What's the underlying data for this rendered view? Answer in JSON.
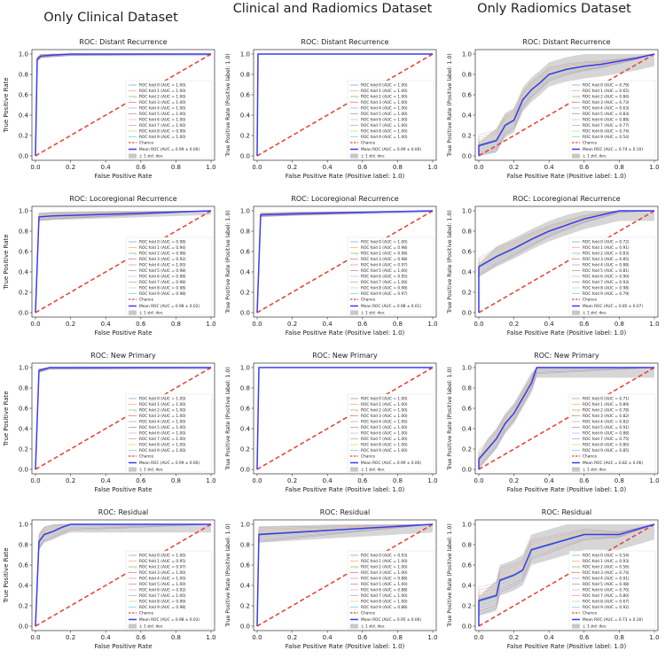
{
  "column_headers": [
    "Only Clinical Dataset",
    "Clinical and Radiomics Dataset",
    "Only Radiomics Dataset"
  ],
  "legend_common": {
    "chance": "Chance",
    "std": "± 1 std. dev."
  },
  "colors": {
    "mean": "#3b3bf0",
    "chance": "#e8453c",
    "band": "#c8c8c8",
    "folds": [
      "#1f77b4",
      "#ff7f0e",
      "#2ca02c",
      "#d62728",
      "#9467bd",
      "#8c564b",
      "#e377c2",
      "#7f7f7f",
      "#bcbd22",
      "#17becf"
    ]
  },
  "chart_data": [
    {
      "type": "line",
      "column": 0,
      "row": 0,
      "title": "ROC: Distant Recurrence",
      "xlabel": "False Positive Rate",
      "ylabel": "True Positive Rate",
      "xlim": [
        0,
        1
      ],
      "ylim": [
        0,
        1
      ],
      "ticks": [
        "0.0",
        "0.2",
        "0.4",
        "0.6",
        "0.8",
        "1.0"
      ],
      "fold_aucs": [
        "1.00",
        "1.00",
        "1.00",
        "1.00",
        "1.00",
        "1.00",
        "1.00",
        "1.00",
        "0.99",
        "1.00"
      ],
      "mean_label": "Mean ROC (AUC = 0.99 ± 0.00)",
      "tpr_std": 0.02,
      "mean_curve": [
        [
          0,
          0
        ],
        [
          0.01,
          0.95
        ],
        [
          0.03,
          0.98
        ],
        [
          0.1,
          0.99
        ],
        [
          0.2,
          1
        ],
        [
          1,
          1
        ]
      ]
    },
    {
      "type": "line",
      "column": 1,
      "row": 0,
      "title": "ROC: Distant Recurrence",
      "xlabel": "False Positive Rate (Positive label: 1.0)",
      "ylabel": "True Positive Rate (Positive label: 1.0)",
      "xlim": [
        0,
        1
      ],
      "ylim": [
        0,
        1
      ],
      "ticks": [
        "0.0",
        "0.2",
        "0.4",
        "0.6",
        "0.8",
        "1.0"
      ],
      "fold_aucs": [
        "1.00",
        "1.00",
        "1.00",
        "1.00",
        "1.00",
        "1.00",
        "1.00",
        "1.00",
        "1.00",
        "1.00"
      ],
      "mean_label": "Mean ROC (AUC = 0.99 ± 0.00)",
      "tpr_std": 0.0,
      "mean_curve": [
        [
          0,
          0
        ],
        [
          0.005,
          1
        ],
        [
          1,
          1
        ]
      ]
    },
    {
      "type": "line",
      "column": 2,
      "row": 0,
      "title": "ROC: Distant Recurrence",
      "xlabel": "False Positive Rate (Positive label: 1.0)",
      "ylabel": "True Positive Rate (Positive label: 1.0)",
      "xlim": [
        0,
        1
      ],
      "ylim": [
        0,
        1
      ],
      "ticks": [
        "0.0",
        "0.2",
        "0.4",
        "0.6",
        "0.8",
        "1.0"
      ],
      "fold_aucs": [
        "0.79",
        "0.65",
        "0.84",
        "0.73",
        "0.63",
        "0.83",
        "0.88",
        "0.77",
        "0.74",
        "0.54"
      ],
      "mean_label": "Mean ROC (AUC = 0.74 ± 0.10)",
      "tpr_std": 0.12,
      "mean_curve": [
        [
          0,
          0
        ],
        [
          0,
          0.1
        ],
        [
          0.1,
          0.15
        ],
        [
          0.15,
          0.3
        ],
        [
          0.2,
          0.35
        ],
        [
          0.25,
          0.55
        ],
        [
          0.3,
          0.65
        ],
        [
          0.35,
          0.72
        ],
        [
          0.4,
          0.8
        ],
        [
          0.5,
          0.85
        ],
        [
          0.6,
          0.88
        ],
        [
          0.7,
          0.9
        ],
        [
          0.8,
          0.93
        ],
        [
          0.9,
          0.96
        ],
        [
          1,
          1
        ]
      ]
    },
    {
      "type": "line",
      "column": 0,
      "row": 1,
      "title": "ROC: Locoregional Recurrence",
      "xlabel": "False Positive Rate",
      "ylabel": "True Positive Rate",
      "xlim": [
        0,
        1
      ],
      "ylim": [
        0,
        1
      ],
      "ticks": [
        "0.0",
        "0.2",
        "0.4",
        "0.6",
        "0.8",
        "1.0"
      ],
      "fold_aucs": [
        "0.98",
        "0.94",
        "0.98",
        "0.92",
        "1.00",
        "0.98",
        "0.98",
        "0.98",
        "0.98",
        "0.98"
      ],
      "mean_label": "Mean ROC (AUC = 0.98 ± 0.02)",
      "tpr_std": 0.04,
      "mean_curve": [
        [
          0,
          0
        ],
        [
          0.02,
          0.94
        ],
        [
          0.1,
          0.95
        ],
        [
          0.5,
          0.97
        ],
        [
          1,
          1
        ]
      ]
    },
    {
      "type": "line",
      "column": 1,
      "row": 1,
      "title": "ROC: Locoregional Recurrence",
      "xlabel": "False Positive Rate (Positive label: 1.0)",
      "ylabel": "True Positive Rate (Positive label: 1.0)",
      "xlim": [
        0,
        1
      ],
      "ylim": [
        0,
        1
      ],
      "ticks": [
        "0.0",
        "0.2",
        "0.4",
        "0.6",
        "0.8",
        "1.0"
      ],
      "fold_aucs": [
        "1.00",
        "0.98",
        "0.98",
        "0.98",
        "0.97",
        "1.00",
        "0.95",
        "1.00",
        "0.98",
        "0.97"
      ],
      "mean_label": "Mean ROC (AUC = 0.98 ± 0.01)",
      "tpr_std": 0.02,
      "mean_curve": [
        [
          0,
          0
        ],
        [
          0.02,
          0.96
        ],
        [
          0.2,
          0.97
        ],
        [
          1,
          1
        ]
      ]
    },
    {
      "type": "line",
      "column": 2,
      "row": 1,
      "title": "ROC: Locoregional Recurrence",
      "xlabel": "False Positive Rate (Positive label: 1.0)",
      "ylabel": "True Positive Rate (Positive label: 1.0)",
      "xlim": [
        0,
        1
      ],
      "ylim": [
        0,
        1
      ],
      "ticks": [
        "0.0",
        "0.2",
        "0.4",
        "0.6",
        "0.8",
        "1.0"
      ],
      "fold_aucs": [
        "0.72",
        "0.91",
        "0.83",
        "0.85",
        "0.88",
        "0.81",
        "0.90",
        "0.93",
        "0.98",
        "0.79"
      ],
      "mean_label": "Mean ROC (AUC = 0.85 ± 0.07)",
      "tpr_std": 0.1,
      "mean_curve": [
        [
          0,
          0
        ],
        [
          0,
          0.45
        ],
        [
          0.1,
          0.55
        ],
        [
          0.2,
          0.63
        ],
        [
          0.3,
          0.72
        ],
        [
          0.4,
          0.8
        ],
        [
          0.5,
          0.86
        ],
        [
          0.6,
          0.92
        ],
        [
          0.7,
          0.96
        ],
        [
          0.8,
          1
        ],
        [
          1,
          1
        ]
      ]
    },
    {
      "type": "line",
      "column": 0,
      "row": 2,
      "title": "ROC: New Primary",
      "xlabel": "False Positive Rate",
      "ylabel": "True Positive Rate",
      "xlim": [
        0,
        1
      ],
      "ylim": [
        0,
        1
      ],
      "ticks": [
        "0.0",
        "0.2",
        "0.4",
        "0.6",
        "0.8",
        "1.0"
      ],
      "fold_aucs": [
        "1.00",
        "1.00",
        "1.00",
        "1.00",
        "1.00",
        "1.00",
        "1.00",
        "1.00",
        "1.00",
        "1.00"
      ],
      "mean_label": "Mean ROC (AUC = 0.99 ± 0.00)",
      "tpr_std": 0.02,
      "mean_curve": [
        [
          0,
          0
        ],
        [
          0.02,
          0.97
        ],
        [
          0.08,
          1
        ],
        [
          1,
          1
        ]
      ]
    },
    {
      "type": "line",
      "column": 1,
      "row": 2,
      "title": "ROC: New Primary",
      "xlabel": "False Positive Rate (Positive label: 1.0)",
      "ylabel": "True Positive Rate (Positive label: 1.0)",
      "xlim": [
        0,
        1
      ],
      "ylim": [
        0,
        1
      ],
      "ticks": [
        "0.0",
        "0.2",
        "0.4",
        "0.6",
        "0.8",
        "1.0"
      ],
      "fold_aucs": [
        "1.00",
        "1.00",
        "1.00",
        "1.00",
        "1.00",
        "1.00",
        "1.00",
        "1.00",
        "1.00",
        "1.00"
      ],
      "mean_label": "Mean ROC (AUC = 0.99 ± 0.00)",
      "tpr_std": 0.0,
      "mean_curve": [
        [
          0,
          0
        ],
        [
          0.01,
          1
        ],
        [
          1,
          1
        ]
      ]
    },
    {
      "type": "line",
      "column": 2,
      "row": 2,
      "title": "ROC: New Primary",
      "xlabel": "False Positive Rate (Positive label: 1.0)",
      "ylabel": "True Positive Rate (Positive label: 1.0)",
      "xlim": [
        0,
        1
      ],
      "ylim": [
        0,
        1
      ],
      "ticks": [
        "0.0",
        "0.2",
        "0.4",
        "0.6",
        "0.8",
        "1.0"
      ],
      "fold_aucs": [
        "0.71",
        "0.89",
        "0.78",
        "0.82",
        "0.82",
        "0.91",
        "0.88",
        "0.75",
        "0.80",
        "0.85"
      ],
      "mean_label": "Mean ROC (AUC = 0.82 ± 0.06)",
      "tpr_std": 0.1,
      "mean_curve": [
        [
          0,
          0
        ],
        [
          0,
          0.1
        ],
        [
          0.05,
          0.2
        ],
        [
          0.1,
          0.3
        ],
        [
          0.15,
          0.45
        ],
        [
          0.2,
          0.55
        ],
        [
          0.25,
          0.7
        ],
        [
          0.3,
          0.85
        ],
        [
          0.33,
          1
        ],
        [
          1,
          1
        ]
      ]
    },
    {
      "type": "line",
      "column": 0,
      "row": 3,
      "title": "ROC: Residual",
      "xlabel": "False Positive Rate",
      "ylabel": "True Positive Rate",
      "xlim": [
        0,
        1
      ],
      "ylim": [
        0,
        1
      ],
      "ticks": [
        "0.0",
        "0.2",
        "0.4",
        "0.6",
        "0.8",
        "1.0"
      ],
      "fold_aucs": [
        "1.00",
        "0.95",
        "0.97",
        "1.00",
        "1.00",
        "1.00",
        "0.92",
        "1.00",
        "0.99",
        "0.98"
      ],
      "mean_label": "Mean ROC (AUC = 0.98 ± 0.03)",
      "tpr_std": 0.08,
      "mean_curve": [
        [
          0,
          0
        ],
        [
          0.02,
          0.83
        ],
        [
          0.05,
          0.9
        ],
        [
          0.1,
          0.93
        ],
        [
          0.15,
          0.97
        ],
        [
          0.2,
          1
        ],
        [
          1,
          1
        ]
      ]
    },
    {
      "type": "line",
      "column": 1,
      "row": 3,
      "title": "ROC: Residual",
      "xlabel": "False Positive Rate (Positive label: 1.0)",
      "ylabel": "True Positive Rate (Positive label: 1.0)",
      "xlim": [
        0,
        1
      ],
      "ylim": [
        0,
        1
      ],
      "ticks": [
        "0.0",
        "0.2",
        "0.4",
        "0.6",
        "0.8",
        "1.0"
      ],
      "fold_aucs": [
        "0.93",
        "1.00",
        "1.00",
        "1.00",
        "0.88",
        "1.00",
        "0.88",
        "1.00",
        "1.00",
        "0.88"
      ],
      "mean_label": "Mean ROC (AUC = 0.95 ± 0.06)",
      "tpr_std": 0.08,
      "mean_curve": [
        [
          0,
          0
        ],
        [
          0.01,
          0.9
        ],
        [
          0.5,
          0.95
        ],
        [
          1,
          1
        ]
      ]
    },
    {
      "type": "line",
      "column": 2,
      "row": 3,
      "title": "ROC: Residual",
      "xlabel": "False Positive Rate (Positive label: 1.0)",
      "ylabel": "True Positive Rate (Positive label: 1.0)",
      "xlim": [
        0,
        1
      ],
      "ylim": [
        0,
        1
      ],
      "ticks": [
        "0.0",
        "0.2",
        "0.4",
        "0.6",
        "0.8",
        "1.0"
      ],
      "fold_aucs": [
        "0.54",
        "0.93",
        "0.56",
        "0.74",
        "0.91",
        "0.48",
        "0.70",
        "0.80",
        "0.67",
        "0.92"
      ],
      "mean_label": "Mean ROC (AUC = 0.73 ± 0.16)",
      "tpr_std": 0.15,
      "mean_curve": [
        [
          0,
          0
        ],
        [
          0,
          0.25
        ],
        [
          0.1,
          0.3
        ],
        [
          0.12,
          0.45
        ],
        [
          0.2,
          0.5
        ],
        [
          0.25,
          0.55
        ],
        [
          0.3,
          0.75
        ],
        [
          0.4,
          0.8
        ],
        [
          0.5,
          0.85
        ],
        [
          0.6,
          0.9
        ],
        [
          0.8,
          0.9
        ],
        [
          1,
          1
        ]
      ]
    }
  ]
}
